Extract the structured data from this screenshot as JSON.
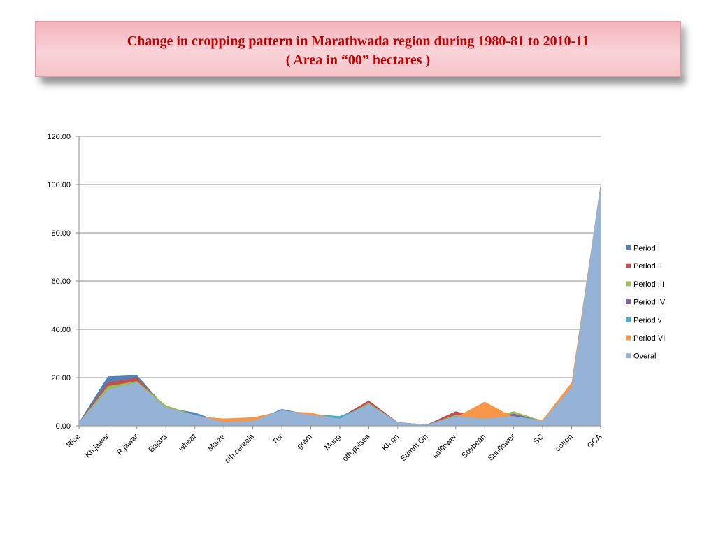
{
  "header": {
    "title": "Change in cropping pattern in Marathwada region during 1980-81 to 2010-11",
    "subtitle": "( Area in “00” hectares )"
  },
  "chart_data": {
    "type": "area",
    "categories": [
      "Rice",
      "Kh.jawar",
      "R.jawar",
      "Bajara",
      "wheat",
      "Maize",
      "oth.cereals",
      "Tur",
      "gram",
      "Mung",
      "oth.pulses",
      "Kh.gn",
      "Summ Gn",
      "safflower",
      "Soybean",
      "Sunflower",
      "SC",
      "cotton",
      "GCA"
    ],
    "ylim": [
      0,
      120
    ],
    "yticks": [
      "0.00",
      "20.00",
      "40.00",
      "60.00",
      "80.00",
      "100.00",
      "120.00"
    ],
    "grid": true,
    "legend_position": "right",
    "series": [
      {
        "name": "Period I",
        "color": "#4f81bd",
        "values": [
          1.5,
          20.5,
          21,
          7.5,
          5.5,
          1.2,
          1.8,
          7,
          4.5,
          4,
          9,
          1.5,
          0.5,
          3.5,
          3,
          4,
          2,
          15,
          100
        ]
      },
      {
        "name": "Period II",
        "color": "#c0504d",
        "values": [
          1.5,
          18,
          20,
          7.5,
          4.5,
          1.5,
          2,
          6.5,
          4.5,
          3.5,
          10.5,
          1.5,
          0.5,
          6,
          3,
          4.5,
          2,
          16,
          100
        ]
      },
      {
        "name": "Period III",
        "color": "#9bbb59",
        "values": [
          1.5,
          16.5,
          18.5,
          8.5,
          4.5,
          1.5,
          2.2,
          6.5,
          4.5,
          3,
          9.5,
          1.5,
          0.5,
          4.5,
          3,
          6,
          2,
          16,
          100
        ]
      },
      {
        "name": "Period IV",
        "color": "#8064a2",
        "values": [
          1.5,
          15,
          18,
          7.5,
          4.5,
          2,
          2.5,
          6.5,
          5,
          3,
          9,
          1.5,
          0.5,
          4,
          3,
          5,
          2,
          16,
          100
        ]
      },
      {
        "name": "Period v",
        "color": "#4bacc6",
        "values": [
          1.5,
          15,
          18,
          7.5,
          4.5,
          2.5,
          3,
          6.5,
          5,
          4,
          8.5,
          1.5,
          0.5,
          4,
          4,
          4,
          2.5,
          16,
          100
        ]
      },
      {
        "name": "Period VI",
        "color": "#f79646",
        "values": [
          1.5,
          15,
          18,
          7.5,
          4,
          3,
          3.5,
          6,
          5.5,
          2.5,
          9,
          1,
          0.5,
          3.5,
          10,
          3.5,
          2.5,
          18,
          100
        ]
      },
      {
        "name": "Overall",
        "color": "#95b3d7",
        "values": [
          1.5,
          15,
          18,
          7.5,
          4.5,
          1.5,
          2,
          6.5,
          4.5,
          3,
          9,
          1.5,
          0.5,
          4,
          3,
          4,
          2,
          16,
          100
        ]
      }
    ]
  }
}
